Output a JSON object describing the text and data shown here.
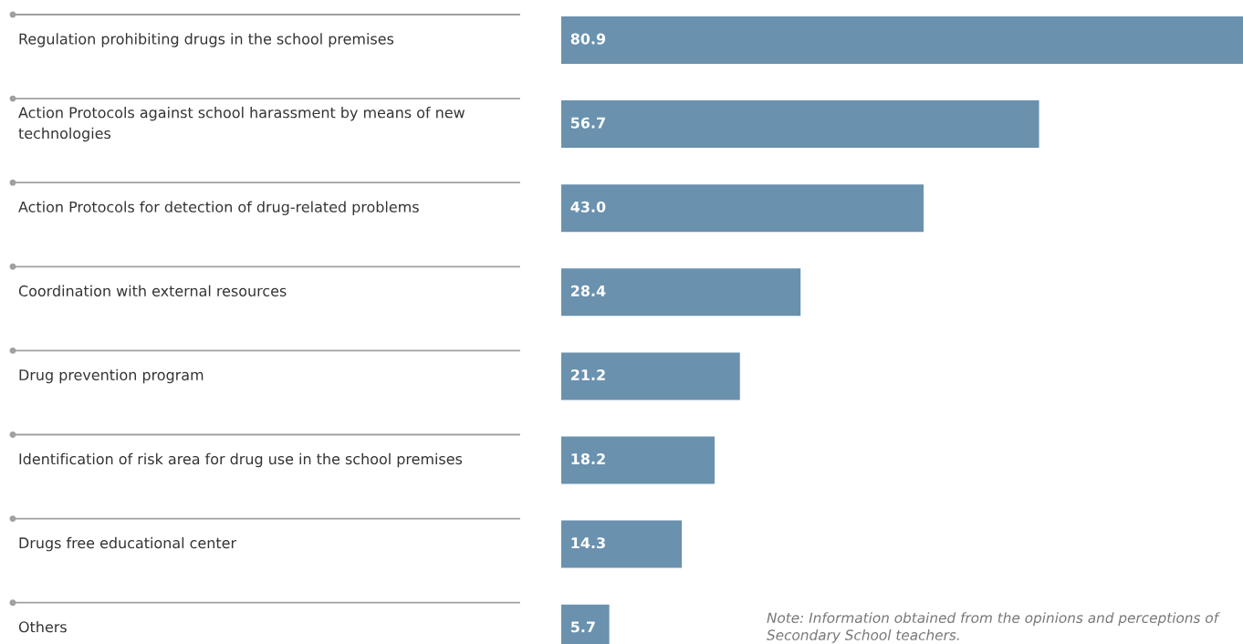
{
  "chart_data": {
    "type": "bar",
    "orientation": "horizontal",
    "categories": [
      "Regulation prohibiting drugs in the school premises",
      "Action Protocols against school harassment by means of new technologies",
      "Action Protocols for detection of drug-related problems",
      "Coordination with external resources",
      "Drug prevention program",
      "Identification of risk area for drug use in the school premises",
      "Drugs free educational center",
      "Others"
    ],
    "values": [
      80.9,
      56.7,
      43.0,
      28.4,
      21.2,
      18.2,
      14.3,
      5.7
    ],
    "value_labels": [
      "80.9",
      "56.7",
      "43.0",
      "28.4",
      "21.2",
      "18.2",
      "14.3",
      "5.7"
    ],
    "color": "#6a91ae",
    "tick_labels": false,
    "annotations": [
      "Note: Information obtained from the opinions and perceptions of Secondary School teachers."
    ]
  }
}
